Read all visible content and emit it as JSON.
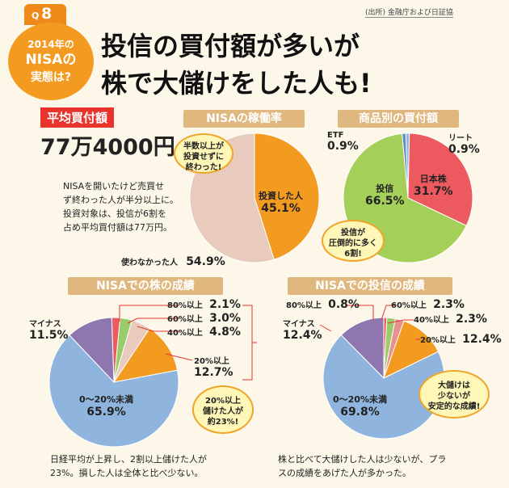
{
  "header": {
    "source": "(出所) 金融庁および日証協",
    "q_prefix": "Q",
    "q_number": "8",
    "badge_line1": "2014年の",
    "badge_line2": "NISAの",
    "badge_line3": "実態は?",
    "headline1": "投信の買付額が多いが",
    "headline2": "株で大儲けをした人も!"
  },
  "avg": {
    "label": "平均買付額",
    "value": "77万4000円",
    "desc1": "NISAを開いたけど売買せ",
    "desc2": "ず終わった人が半分以上に。",
    "desc3": "投資対象は、投信が6割を",
    "desc4": "占め平均買付額は77万円。"
  },
  "bubbles": {
    "operation": [
      "半数以上が",
      "投資せずに",
      "終わった!"
    ],
    "product": [
      "投信が",
      "圧倒的に多く",
      "6割!"
    ],
    "stock": [
      "20%以上",
      "儲けた人が",
      "約23%!"
    ],
    "fund": [
      "大儲けは",
      "少ないが",
      "安定的な成績!"
    ]
  },
  "notes": {
    "stock1": "日経平均が上昇し、2割以上儲けた人が",
    "stock2": "23%。損した人は全体と比べ少ない。",
    "fund1": "株と比べて大儲けした人は少ないが、プラ",
    "fund2": "スの成績をあげた人が多かった。"
  },
  "colors": {
    "orange": "#f39a21",
    "beige": "#e8cbbd",
    "green": "#a4d05a",
    "red": "#ec5a5f",
    "blue": "#5b8bc8",
    "lightblue": "#8fb5de",
    "purple": "#8e76ae",
    "lightgreen": "#9bcc6a",
    "pink": "#e8908f",
    "title_bar": "#e0b77e",
    "accent": "#e8342c"
  },
  "chart_data": [
    {
      "type": "pie",
      "title": "NISAの稼働率",
      "labels": [
        "投資した人",
        "使わなかった人"
      ],
      "values": [
        45.1,
        54.9
      ],
      "value_labels": [
        "45.1%",
        "54.9%"
      ]
    },
    {
      "type": "pie",
      "title": "商品別の買付額",
      "labels": [
        "日本株",
        "投信",
        "ETF",
        "リート"
      ],
      "values": [
        31.7,
        66.5,
        0.9,
        0.9
      ],
      "value_labels": [
        "31.7%",
        "66.5%",
        "0.9%",
        "0.9%"
      ]
    },
    {
      "type": "pie",
      "title": "NISAでの株の成績",
      "labels": [
        "80%以上",
        "60%以上",
        "40%以上",
        "20%以上",
        "0〜20%未満",
        "マイナス"
      ],
      "values": [
        2.1,
        3.0,
        4.8,
        12.7,
        65.9,
        11.5
      ],
      "value_labels": [
        "2.1%",
        "3.0%",
        "4.8%",
        "12.7%",
        "65.9%",
        "11.5%"
      ]
    },
    {
      "type": "pie",
      "title": "NISAでの投信の成績",
      "labels": [
        "80%以上",
        "60%以上",
        "40%以上",
        "20%以上",
        "0〜20%未満",
        "マイナス"
      ],
      "values": [
        0.8,
        2.3,
        2.3,
        12.4,
        69.8,
        12.4
      ],
      "value_labels": [
        "0.8%",
        "2.3%",
        "2.3%",
        "12.4%",
        "69.8%",
        "12.4%"
      ]
    }
  ]
}
